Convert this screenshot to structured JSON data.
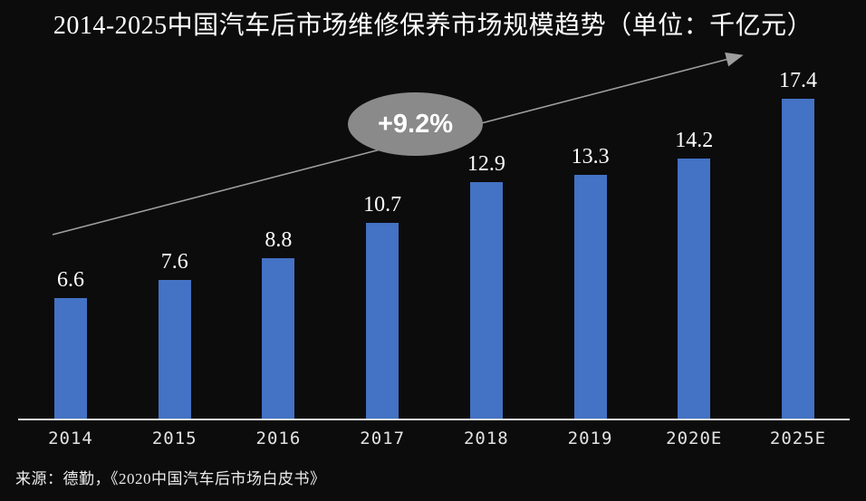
{
  "title": "2014-2025中国汽车后市场维修保养市场规模趋势（单位：千亿元）",
  "chart_data": {
    "type": "bar",
    "title": "2014-2025中国汽车后市场维修保养市场规模趋势（单位：千亿元）",
    "unit": "千亿元",
    "categories": [
      "2014",
      "2015",
      "2016",
      "2017",
      "2018",
      "2019",
      "2020E",
      "2025E"
    ],
    "values": [
      6.6,
      7.6,
      8.8,
      10.7,
      12.9,
      13.3,
      14.2,
      17.4
    ],
    "annotation": "+9.2%",
    "xlabel": "",
    "ylabel": "",
    "ylim": [
      0,
      22
    ],
    "grid": false,
    "legend": "none",
    "background": "dark"
  },
  "annotation": {
    "growth_label": "+9.2%"
  },
  "source": {
    "text": "来源：德勤，《2020中国汽车后市场白皮书》"
  },
  "colors": {
    "background": "#0c0c0c",
    "bar": "#4472c4",
    "ellipse": "#8a8a8a",
    "arrow": "#9e9e9e",
    "axis": "#e0e0e0",
    "text": "#ffffff",
    "axis_label": "#e2e2e2"
  }
}
